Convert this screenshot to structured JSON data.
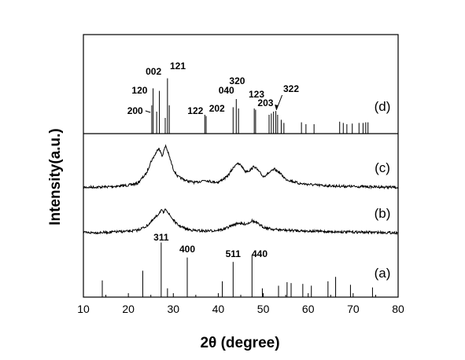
{
  "chart_data": {
    "type": "line",
    "xlabel": "2θ (degree)",
    "ylabel": "Intensity(a.u.)",
    "xlim": [
      10,
      80
    ],
    "x_ticks": [
      10,
      20,
      30,
      40,
      50,
      60,
      70,
      80
    ],
    "x_tick_labels": [
      "10",
      "20",
      "30",
      "40",
      "50",
      "60",
      "70",
      "80"
    ],
    "grid": false,
    "legend": "none",
    "series": [
      {
        "name": "(a)",
        "kind": "reference-sticks",
        "sticks": [
          {
            "x": 14.2,
            "h": 0.19
          },
          {
            "x": 23.2,
            "h": 0.3
          },
          {
            "x": 27.3,
            "h": 0.62,
            "label": "311"
          },
          {
            "x": 28.7,
            "h": 0.1
          },
          {
            "x": 33.1,
            "h": 0.45,
            "label": "400"
          },
          {
            "x": 40.9,
            "h": 0.18
          },
          {
            "x": 43.3,
            "h": 0.4,
            "label": "511"
          },
          {
            "x": 47.5,
            "h": 0.48,
            "label": "440"
          },
          {
            "x": 49.8,
            "h": 0.1
          },
          {
            "x": 53.4,
            "h": 0.13
          },
          {
            "x": 55.3,
            "h": 0.17
          },
          {
            "x": 56.2,
            "h": 0.16
          },
          {
            "x": 58.8,
            "h": 0.15
          },
          {
            "x": 60.7,
            "h": 0.13
          },
          {
            "x": 64.4,
            "h": 0.18
          },
          {
            "x": 66.1,
            "h": 0.23
          },
          {
            "x": 69.4,
            "h": 0.14
          },
          {
            "x": 74.3,
            "h": 0.11
          }
        ]
      },
      {
        "name": "(b)",
        "kind": "measured",
        "points": [
          [
            10,
            0.02
          ],
          [
            15,
            0.03
          ],
          [
            18,
            0.05
          ],
          [
            20,
            0.06
          ],
          [
            22,
            0.09
          ],
          [
            24,
            0.2
          ],
          [
            25.5,
            0.38
          ],
          [
            26.5,
            0.52
          ],
          [
            27.3,
            0.66
          ],
          [
            27.8,
            0.58
          ],
          [
            28.4,
            0.7
          ],
          [
            29,
            0.55
          ],
          [
            30,
            0.38
          ],
          [
            31,
            0.24
          ],
          [
            33,
            0.12
          ],
          [
            35,
            0.08
          ],
          [
            37,
            0.07
          ],
          [
            39,
            0.08
          ],
          [
            41,
            0.11
          ],
          [
            43,
            0.22
          ],
          [
            44.5,
            0.3
          ],
          [
            45.5,
            0.26
          ],
          [
            46.5,
            0.28
          ],
          [
            47.5,
            0.36
          ],
          [
            48.5,
            0.3
          ],
          [
            50,
            0.18
          ],
          [
            52,
            0.12
          ],
          [
            55,
            0.09
          ],
          [
            60,
            0.07
          ],
          [
            65,
            0.05
          ],
          [
            70,
            0.04
          ],
          [
            75,
            0.03
          ],
          [
            80,
            0.02
          ]
        ]
      },
      {
        "name": "(c)",
        "kind": "measured",
        "points": [
          [
            10,
            0.03
          ],
          [
            15,
            0.04
          ],
          [
            18,
            0.06
          ],
          [
            20,
            0.08
          ],
          [
            22,
            0.12
          ],
          [
            24,
            0.35
          ],
          [
            25,
            0.62
          ],
          [
            26,
            0.8
          ],
          [
            26.8,
            0.95
          ],
          [
            27.5,
            0.75
          ],
          [
            28.3,
            1.0
          ],
          [
            29,
            0.78
          ],
          [
            30,
            0.45
          ],
          [
            31,
            0.28
          ],
          [
            33,
            0.18
          ],
          [
            35,
            0.14
          ],
          [
            37,
            0.2
          ],
          [
            38.5,
            0.16
          ],
          [
            40,
            0.15
          ],
          [
            42,
            0.28
          ],
          [
            44,
            0.58
          ],
          [
            45,
            0.55
          ],
          [
            46,
            0.4
          ],
          [
            47,
            0.42
          ],
          [
            48,
            0.52
          ],
          [
            49,
            0.4
          ],
          [
            50,
            0.28
          ],
          [
            51.5,
            0.38
          ],
          [
            52.5,
            0.45
          ],
          [
            53.5,
            0.38
          ],
          [
            55,
            0.22
          ],
          [
            58,
            0.12
          ],
          [
            62,
            0.08
          ],
          [
            66,
            0.06
          ],
          [
            70,
            0.05
          ],
          [
            75,
            0.04
          ],
          [
            80,
            0.03
          ]
        ]
      },
      {
        "name": "(d)",
        "kind": "reference-sticks",
        "sticks": [
          {
            "x": 25.2,
            "h": 0.45,
            "label": "200"
          },
          {
            "x": 25.5,
            "h": 0.72,
            "label": "120"
          },
          {
            "x": 26.3,
            "h": 0.35
          },
          {
            "x": 26.9,
            "h": 0.68
          },
          {
            "x": 28.2,
            "h": 0.25
          },
          {
            "x": 28.7,
            "h": 0.88,
            "label": "121"
          },
          {
            "x": 29.1,
            "h": 0.45
          },
          {
            "x": 37.0,
            "h": 0.3,
            "label": "122"
          },
          {
            "x": 37.3,
            "h": 0.28
          },
          {
            "x": 43.3,
            "h": 0.42
          },
          {
            "x": 44.0,
            "h": 0.55
          },
          {
            "x": 44.5,
            "h": 0.4
          },
          {
            "x": 48.0,
            "h": 0.4
          },
          {
            "x": 48.3,
            "h": 0.38
          },
          {
            "x": 51.3,
            "h": 0.3
          },
          {
            "x": 51.8,
            "h": 0.32
          },
          {
            "x": 52.3,
            "h": 0.35
          },
          {
            "x": 52.8,
            "h": 0.36
          },
          {
            "x": 53.2,
            "h": 0.3
          },
          {
            "x": 54.0,
            "h": 0.22
          },
          {
            "x": 54.6,
            "h": 0.17
          },
          {
            "x": 58.5,
            "h": 0.18
          },
          {
            "x": 59.5,
            "h": 0.15
          },
          {
            "x": 61.3,
            "h": 0.15
          },
          {
            "x": 67.0,
            "h": 0.19
          },
          {
            "x": 67.8,
            "h": 0.17
          },
          {
            "x": 68.6,
            "h": 0.15
          },
          {
            "x": 69.8,
            "h": 0.16
          },
          {
            "x": 71.3,
            "h": 0.17
          },
          {
            "x": 72.2,
            "h": 0.17
          },
          {
            "x": 72.8,
            "h": 0.18
          },
          {
            "x": 73.3,
            "h": 0.18
          }
        ],
        "annotations": [
          {
            "text": "200",
            "x": 25.2
          },
          {
            "text": "120",
            "x": 25.5
          },
          {
            "text": "002",
            "x": 26.9
          },
          {
            "text": "121",
            "x": 28.7
          },
          {
            "text": "122",
            "x": 37.0
          },
          {
            "text": "202",
            "x": 39.7
          },
          {
            "text": "040",
            "x": 43.3
          },
          {
            "text": "320",
            "x": 44.0
          },
          {
            "text": "123",
            "x": 48.0
          },
          {
            "text": "203",
            "x": 51.5
          },
          {
            "text": "322",
            "x": 53.4
          }
        ]
      }
    ]
  }
}
